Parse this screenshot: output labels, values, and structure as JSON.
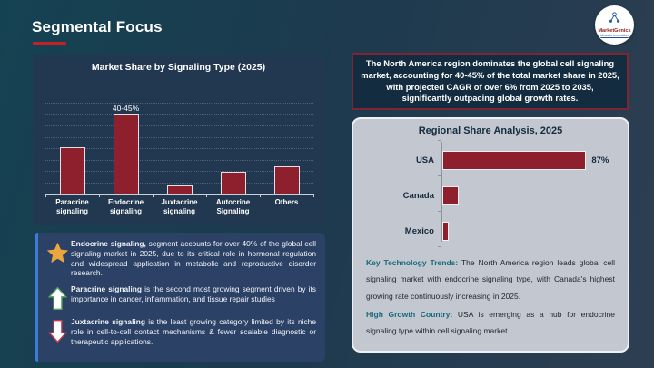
{
  "header": {
    "title": "Segmental Focus",
    "logo": {
      "brand": "MarketGenics",
      "tagline": "Ideas to Innovation"
    }
  },
  "chart_data": [
    {
      "type": "bar",
      "orientation": "vertical",
      "title": "Market Share by Signaling Type (2025)",
      "categories": [
        "Paracrine signaling",
        "Endocrine signaling",
        "Juxtacrine signaling",
        "Autocrine Signaling",
        "Others"
      ],
      "values": [
        25,
        42.5,
        5,
        12,
        15
      ],
      "bar_labels": [
        "",
        "40-45%",
        "",
        "",
        ""
      ],
      "ylim": [
        0,
        48
      ],
      "grid": "dotted-horizontal",
      "legend": "none",
      "bar_color": "#8e1f2c"
    },
    {
      "type": "bar",
      "orientation": "horizontal",
      "title": "Regional Share Analysis, 2025",
      "categories": [
        "USA",
        "Canada",
        "Mexico"
      ],
      "values": [
        87,
        10,
        4
      ],
      "data_labels": [
        "87%",
        "",
        ""
      ],
      "xlim": [
        0,
        100
      ],
      "grid": "off",
      "legend": "none",
      "bar_color": "#8e1f2c"
    }
  ],
  "callouts": [
    {
      "icon": "star",
      "bold": "Endocrine signaling,",
      "text": " segment accounts for over 40% of the global cell signaling market in 2025, due to its critical role in hormonal regulation and widespread application in metabolic and reproductive disorder research."
    },
    {
      "icon": "up-arrow",
      "bold": "Paracrine signaling",
      "text": " is the second most growing segment driven by its importance in cancer, inflammation, and tissue repair studies"
    },
    {
      "icon": "down-arrow",
      "bold": "Juxtacrine signaling",
      "text": " is the least growing category limited by its niche role in cell-to-cell contact mechanisms & fewer scalable diagnostic or therapeutic applications."
    }
  ],
  "highlight_box": {
    "text": "The North America region dominates the global cell signaling market, accounting for 40-45% of the total market share in 2025, with projected CAGR of over 6% from 2025 to 2035, significantly outpacing global growth rates."
  },
  "insights": [
    {
      "label": "Key Technology Trends:",
      "text": " The North America region leads global cell signaling market with endocrine signaling type, with Canada's highest growing rate continuously increasing in 2025."
    },
    {
      "label": "High Growth Country:",
      "text": " USA is emerging as a hub for endocrine signaling type within cell signaling market ."
    }
  ],
  "colors": {
    "background_left": "#154252",
    "background_right": "#2e3e52",
    "accent_red_underline": "#c42127",
    "bar_red": "#8e1f2c",
    "chart_panel_navy": "#223750",
    "callout_panel_blue": "#2b4166",
    "callout_accent_blue": "#3d7bd7",
    "highlight_fill": "#132c3f",
    "highlight_border": "#7e2433",
    "card_gray": "#c3c8d0",
    "insight_label_teal": "#176a7c",
    "star_gold": "#eaa63f",
    "arrow_green": "#58a758",
    "arrow_red": "#c23b4c",
    "text_white": "#ffffff",
    "text_navy": "#15293c"
  }
}
